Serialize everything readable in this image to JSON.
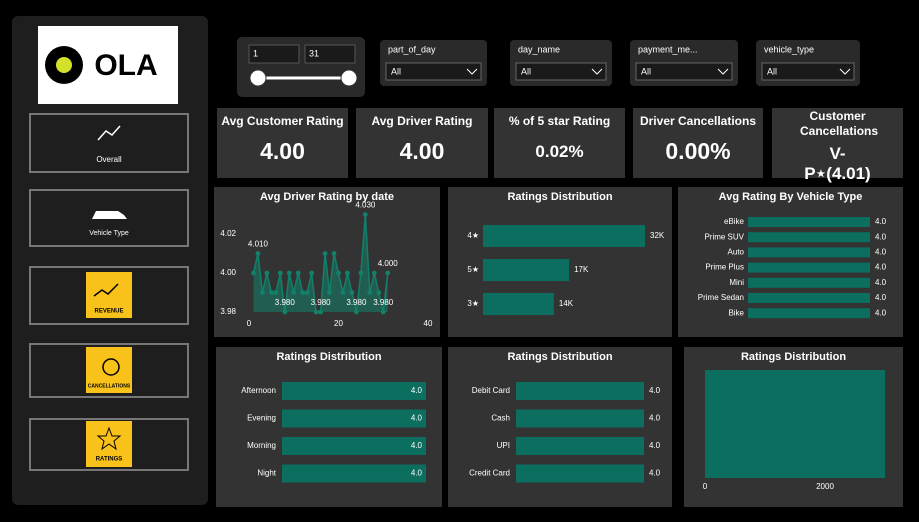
{
  "logo": "OLA",
  "nav": [
    "Overall",
    "Vehicle Type",
    "REVENUE",
    "CANCELLATIONS",
    "RATINGS"
  ],
  "date_slicer": {
    "start": 1,
    "end": 31
  },
  "filters": [
    {
      "label": "part_of_day",
      "value": "All"
    },
    {
      "label": "day_name",
      "value": "All"
    },
    {
      "label": "payment_me...",
      "value": "All"
    },
    {
      "label": "vehicle_type",
      "value": "All"
    }
  ],
  "kpis": [
    {
      "label": "Avg Customer Rating",
      "value": "4.00"
    },
    {
      "label": "Avg Driver Rating",
      "value": "4.00"
    },
    {
      "label": "% of 5 star Rating",
      "value": "0.02%"
    },
    {
      "label": "Driver Cancellations",
      "value": "0.00%"
    },
    {
      "label": "Customer Cancellations",
      "value": "V-P⋆(4.01)"
    }
  ],
  "chart_data": [
    {
      "type": "line",
      "title": "Avg Driver Rating by date",
      "color": "#12806a",
      "x": [
        1,
        2,
        3,
        4,
        5,
        6,
        7,
        8,
        9,
        10,
        11,
        12,
        13,
        14,
        15,
        16,
        17,
        18,
        19,
        20,
        21,
        22,
        23,
        24,
        25,
        26,
        27,
        28,
        29,
        30,
        31
      ],
      "values": [
        4.0,
        4.01,
        3.99,
        4.0,
        3.99,
        3.99,
        4.0,
        3.98,
        4.0,
        3.99,
        4.0,
        3.99,
        3.99,
        4.0,
        3.98,
        3.98,
        4.01,
        3.99,
        4.01,
        4.0,
        3.99,
        4.0,
        3.99,
        3.98,
        4.0,
        4.03,
        3.99,
        4.0,
        3.99,
        3.98,
        4.0
      ],
      "value_labels": [
        null,
        "4.010",
        null,
        null,
        null,
        null,
        null,
        "3.980",
        null,
        null,
        null,
        null,
        null,
        null,
        null,
        "3.980",
        null,
        null,
        null,
        null,
        null,
        null,
        null,
        "3.980",
        null,
        "4.030",
        null,
        null,
        null,
        "3.980",
        "4.000"
      ],
      "xlim": [
        0,
        40
      ],
      "xticks": [
        0,
        20,
        40
      ],
      "ylim": [
        3.98,
        4.02
      ],
      "yticks": [
        3.98,
        {
          "value": 4,
          "label": "4.00"
        },
        4.02
      ]
    },
    {
      "type": "hbar",
      "title": "Ratings Distribution",
      "color": "#0b6e5f",
      "categories": [
        "4★",
        "5★",
        "3★"
      ],
      "values": [
        32000,
        17000,
        14000
      ],
      "value_labels": [
        "32K",
        "17K",
        "14K"
      ],
      "label_position": "outside"
    },
    {
      "type": "hbar",
      "title": "Avg Rating By Vehicle Type",
      "color": "#0b6e5f",
      "categories": [
        "eBike",
        "Prime SUV",
        "Auto",
        "Prime Plus",
        "Mini",
        "Prime Sedan",
        "Bike"
      ],
      "values": [
        4,
        4,
        4,
        4,
        4,
        4,
        4
      ],
      "value_labels": [
        "4.0",
        "4.0",
        "4.0",
        "4.0",
        "4.0",
        "4.0",
        "4.0"
      ],
      "label_position": "outside"
    },
    {
      "type": "hbar",
      "title": "Ratings Distribution",
      "color": "#0b6e5f",
      "categories": [
        "Afternoon",
        "Evening",
        "Morning",
        "Night"
      ],
      "values": [
        4,
        4,
        4,
        4
      ],
      "value_labels": [
        "4.0",
        "4.0",
        "4.0",
        "4.0"
      ],
      "label_position": "inside"
    },
    {
      "type": "hbar",
      "title": "Ratings Distribution",
      "color": "#0b6e5f",
      "categories": [
        "Debit Card",
        "Cash",
        "UPI",
        "Credit Card"
      ],
      "values": [
        4,
        4,
        4,
        4
      ],
      "value_labels": [
        "4.0",
        "4.0",
        "4.0",
        "4.0"
      ],
      "label_position": "outside"
    },
    {
      "type": "scatter",
      "title": "Ratings Distribution",
      "color": "#0b6e5f",
      "xlim": [
        0,
        3000
      ],
      "xticks": [
        0,
        2000
      ]
    }
  ]
}
